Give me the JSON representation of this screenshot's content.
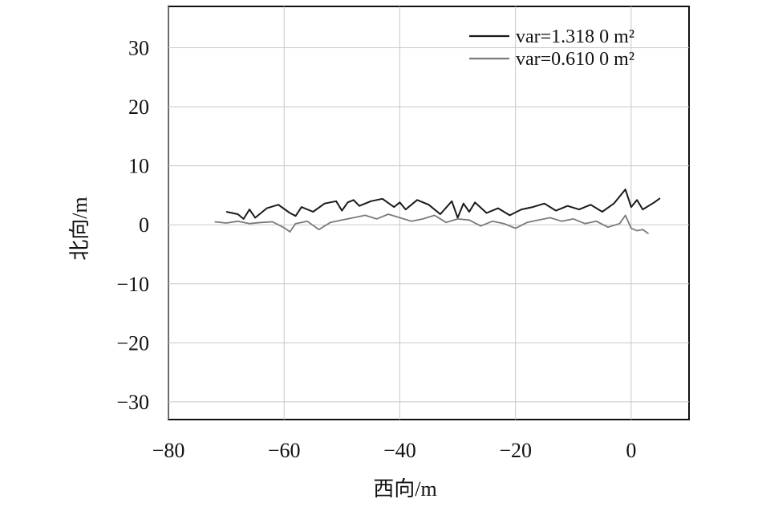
{
  "chart_data": {
    "type": "line",
    "title": "",
    "xlabel": "西向/m",
    "ylabel": "北向/m",
    "xlim": [
      -80,
      10
    ],
    "ylim": [
      -33,
      37
    ],
    "xticks": [
      -80,
      -60,
      -40,
      -20,
      0
    ],
    "yticks": [
      -30,
      -20,
      -10,
      0,
      10,
      20,
      30
    ],
    "xtick_labels": [
      "−80",
      "−60",
      "−40",
      "−20",
      "0"
    ],
    "ytick_labels": [
      "−30",
      "−20",
      "−10",
      "0",
      "10",
      "20",
      "30"
    ],
    "grid": true,
    "legend_position": "top-right",
    "series": [
      {
        "name": "var=1.318 0 m²",
        "color": "#1a1a1a",
        "x": [
          -70,
          -68,
          -67,
          -66,
          -65,
          -63,
          -61,
          -59,
          -58,
          -57,
          -55,
          -53,
          -51,
          -50,
          -49,
          -48,
          -47,
          -45,
          -43,
          -41,
          -40,
          -39,
          -37,
          -35,
          -33,
          -31,
          -30,
          -29,
          -28,
          -27,
          -25,
          -23,
          -21,
          -19,
          -17,
          -15,
          -13,
          -11,
          -9,
          -7,
          -5,
          -3,
          -1,
          0,
          1,
          2,
          3,
          4,
          5
        ],
        "y": [
          2.2,
          1.8,
          1.0,
          2.6,
          1.2,
          2.8,
          3.4,
          2.0,
          1.5,
          3.0,
          2.2,
          3.6,
          4.0,
          2.4,
          3.8,
          4.2,
          3.2,
          4.0,
          4.4,
          3.0,
          3.8,
          2.6,
          4.2,
          3.4,
          1.8,
          4.0,
          1.2,
          3.6,
          2.2,
          3.8,
          2.0,
          2.8,
          1.6,
          2.6,
          3.0,
          3.6,
          2.4,
          3.2,
          2.6,
          3.4,
          2.2,
          3.6,
          6.0,
          3.0,
          4.2,
          2.6,
          3.2,
          3.8,
          4.5
        ]
      },
      {
        "name": "var=0.610 0 m²",
        "color": "#7a7a7a",
        "x": [
          -72,
          -70,
          -68,
          -66,
          -64,
          -62,
          -60,
          -59,
          -58,
          -56,
          -54,
          -52,
          -50,
          -48,
          -46,
          -44,
          -42,
          -40,
          -38,
          -36,
          -34,
          -32,
          -30,
          -28,
          -26,
          -24,
          -22,
          -20,
          -18,
          -16,
          -14,
          -12,
          -10,
          -8,
          -6,
          -4,
          -2,
          -1,
          0,
          1,
          2,
          3
        ],
        "y": [
          0.5,
          0.3,
          0.6,
          0.2,
          0.4,
          0.5,
          -0.5,
          -1.2,
          0.2,
          0.6,
          -0.8,
          0.4,
          0.8,
          1.2,
          1.6,
          1.0,
          1.8,
          1.2,
          0.6,
          1.0,
          1.6,
          0.4,
          1.0,
          0.8,
          -0.2,
          0.6,
          0.2,
          -0.6,
          0.4,
          0.8,
          1.2,
          0.6,
          1.0,
          0.2,
          0.6,
          -0.4,
          0.2,
          1.6,
          -0.6,
          -1.0,
          -0.8,
          -1.5
        ]
      }
    ]
  }
}
